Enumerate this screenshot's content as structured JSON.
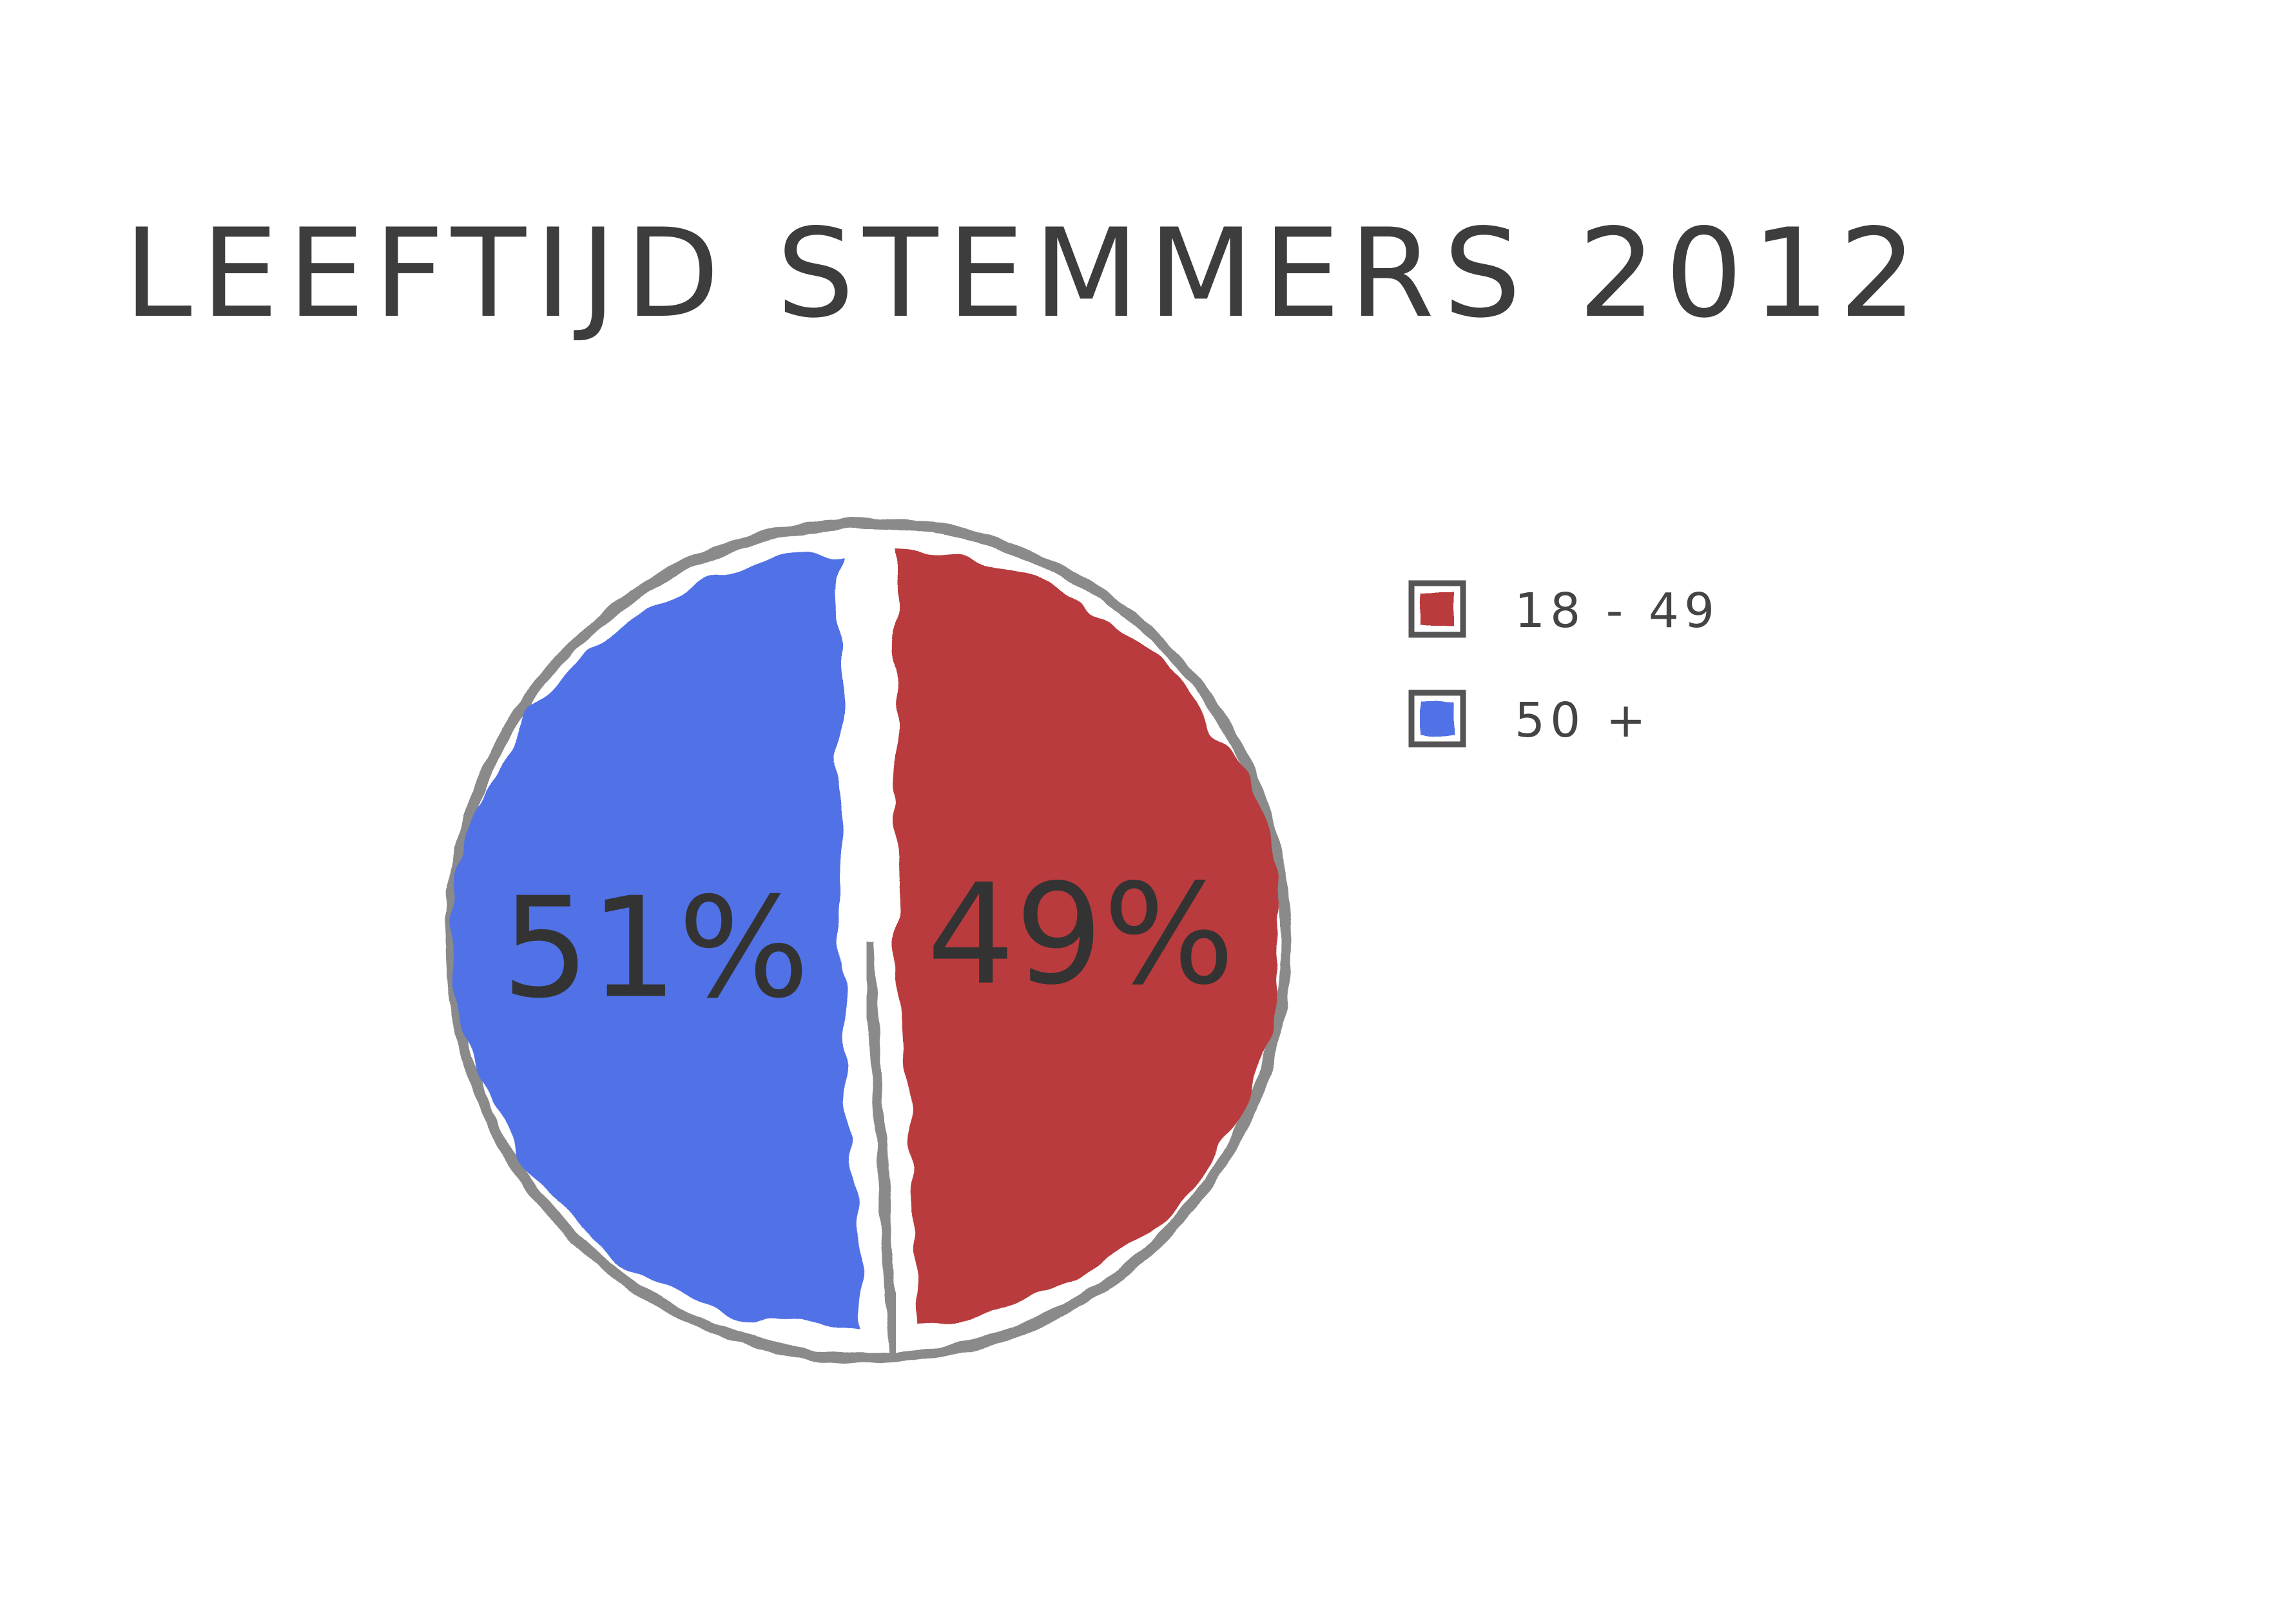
{
  "chart_data": {
    "type": "pie",
    "title": "LEEFTIJD STEMMERS 2012",
    "categories": [
      "18-49",
      "50+"
    ],
    "values": [
      49,
      51
    ],
    "unit": "%",
    "data_labels": [
      "49%",
      "51%"
    ],
    "colors": [
      "#b93b3c",
      "#5171e6"
    ],
    "legend": {
      "placement": "right",
      "entries": [
        "18 - 49",
        "50 +"
      ]
    }
  }
}
